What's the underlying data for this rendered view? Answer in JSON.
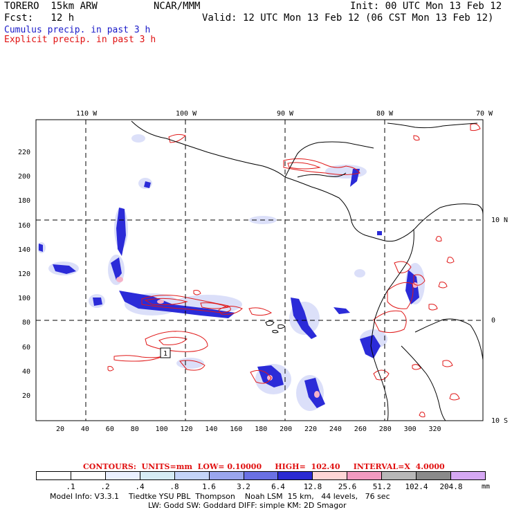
{
  "header": {
    "model": "TORERO  15km ARW",
    "center": "NCAR/MMM",
    "init": "Init: 00 UTC Mon 13 Feb 12",
    "fcst": "Fcst:   12 h",
    "valid": "Valid: 12 UTC Mon 13 Feb 12 (06 CST Mon 13 Feb 12)",
    "line_cumulus": "Cumulus precip. in past 3 h",
    "line_explicit": "Explicit precip. in past 3 h"
  },
  "map": {
    "lon_labels": [
      "110 W",
      "100 W",
      "90 W",
      "80 W",
      "70 W"
    ],
    "lat_labels": [
      "10 N",
      "0",
      "10 S"
    ],
    "x_ticks": [
      "20",
      "40",
      "60",
      "80",
      "100",
      "120",
      "140",
      "160",
      "180",
      "200",
      "220",
      "240",
      "260",
      "280",
      "300",
      "320"
    ],
    "y_ticks": [
      "20",
      "40",
      "60",
      "80",
      "100",
      "120",
      "140",
      "160",
      "180",
      "200",
      "220"
    ],
    "marker_label": "1",
    "colors": {
      "cumulus": "#2b2bd8",
      "cumulus_light": "#a8b4f0",
      "explicit": "#e01818",
      "coast": "#000000",
      "grid": "#000000"
    }
  },
  "contours": {
    "label": "CONTOURS:  UNITS=mm  LOW= 0.10000     HIGH=  102.40     INTERVAL=X  4.0000"
  },
  "colorbar": {
    "labels": [
      ".1",
      ".2",
      ".4",
      ".8",
      "1.6",
      "3.2",
      "6.4",
      "12.8",
      "25.6",
      "51.2",
      "102.4",
      "204.8"
    ],
    "unit": "mm",
    "colors": [
      "#ffffff",
      "#ffffff",
      "#eaf0ff",
      "#d6ecf4",
      "#c4d4f8",
      "#9aa6ee",
      "#6a70e4",
      "#2a2ad2",
      "#ffd6d6",
      "#f39ac0",
      "#b8b8b8",
      "#8a8a8a",
      "#d6a8f4"
    ]
  },
  "footer": {
    "line1": "Model Info: V3.3.1    Tiedtke YSU PBL  Thompson    Noah LSM  15 km,   44 levels,   76 sec",
    "line2": "LW: Godd SW: Goddard DIFF: simple KM: 2D Smagor"
  }
}
